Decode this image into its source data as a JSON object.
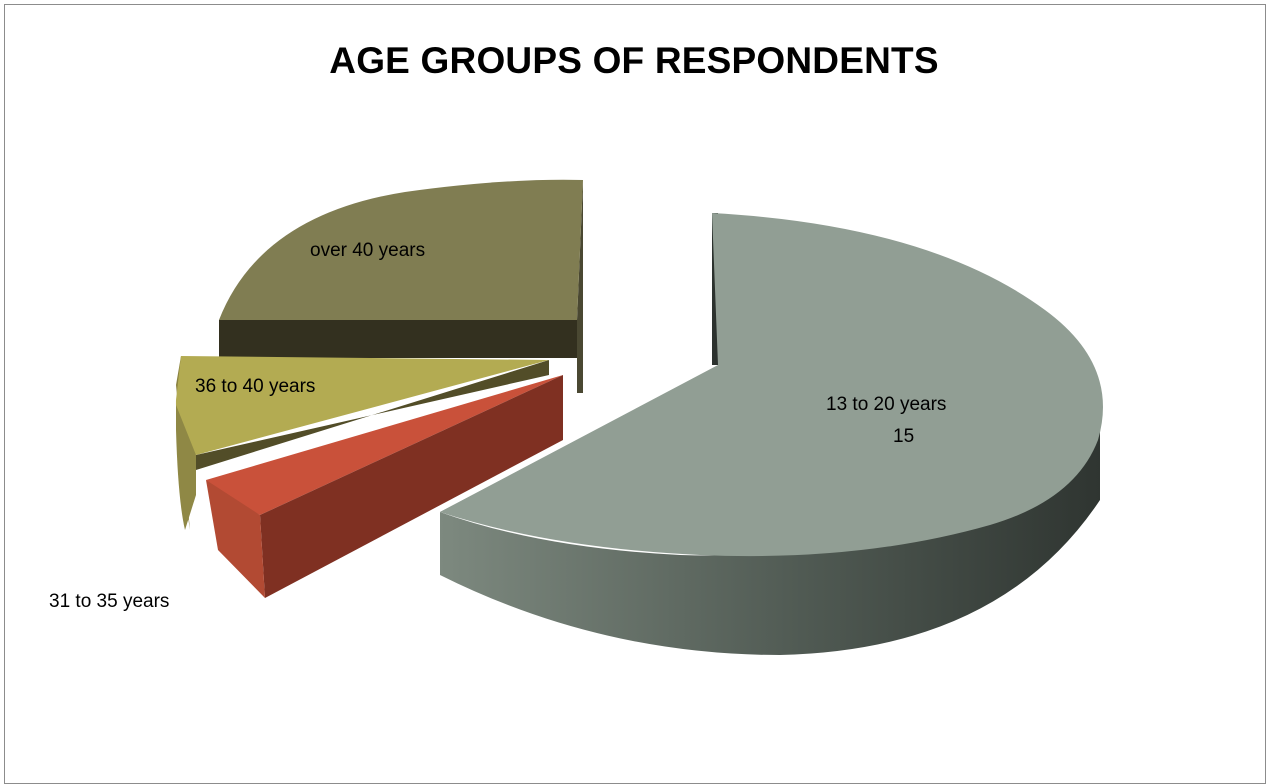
{
  "chart_data": {
    "type": "pie",
    "style": "3d-exploded",
    "title": "AGE GROUPS OF RESPONDENTS",
    "slices": [
      {
        "label": "13 to 20 years",
        "value": 15,
        "value_label": "15",
        "color": "#919e94"
      },
      {
        "label": "31 to  35 years",
        "value": 1,
        "color": "#c9513a"
      },
      {
        "label": "36 to 40  years",
        "value": 2,
        "color": "#b3ab52"
      },
      {
        "label": "over 40 years",
        "value": 6,
        "color": "#807d52"
      }
    ],
    "legend": "none"
  }
}
